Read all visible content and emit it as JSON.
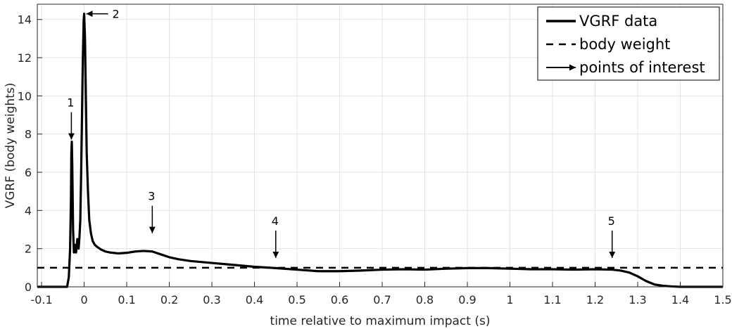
{
  "chart_data": {
    "type": "line",
    "title": "",
    "xlabel": "time relative to maximum impact (s)",
    "ylabel": "VGRF (body weights)",
    "xlim": [
      -0.11,
      1.5
    ],
    "ylim": [
      0,
      14.8
    ],
    "x_ticks": [
      -0.1,
      0,
      0.1,
      0.2,
      0.3,
      0.4,
      0.5,
      0.6,
      0.7,
      0.8,
      0.9,
      1,
      1.1,
      1.2,
      1.3,
      1.4,
      1.5
    ],
    "x_tick_labels": [
      "-0.1",
      "0",
      "0.1",
      "0.2",
      "0.3",
      "0.4",
      "0.5",
      "0.6",
      "0.7",
      "0.8",
      "0.9",
      "1",
      "1.1",
      "1.2",
      "1.3",
      "1.4",
      "1.5"
    ],
    "y_ticks": [
      0,
      2,
      4,
      6,
      8,
      10,
      12,
      14
    ],
    "y_tick_labels": [
      "0",
      "2",
      "4",
      "6",
      "8",
      "10",
      "12",
      "14"
    ],
    "grid": true,
    "legend_position": "top-right",
    "legend": [
      {
        "label": "VGRF data",
        "style": "solid"
      },
      {
        "label": "body weight",
        "style": "dashed"
      },
      {
        "label": "points of interest",
        "style": "arrow"
      }
    ],
    "series": [
      {
        "name": "VGRF data",
        "style": "solid",
        "color": "#000000",
        "x": [
          -0.11,
          -0.04,
          -0.036,
          -0.033,
          -0.031,
          -0.03,
          -0.029,
          -0.028,
          -0.026,
          -0.024,
          -0.022,
          -0.019,
          -0.016,
          -0.013,
          -0.011,
          -0.009,
          -0.007,
          -0.005,
          -0.003,
          -0.001,
          0.0,
          0.002,
          0.004,
          0.006,
          0.009,
          0.012,
          0.016,
          0.02,
          0.025,
          0.03,
          0.04,
          0.05,
          0.06,
          0.08,
          0.1,
          0.12,
          0.14,
          0.16,
          0.18,
          0.2,
          0.22,
          0.25,
          0.3,
          0.35,
          0.4,
          0.45,
          0.5,
          0.55,
          0.6,
          0.65,
          0.7,
          0.75,
          0.8,
          0.85,
          0.9,
          0.95,
          1.0,
          1.05,
          1.1,
          1.15,
          1.2,
          1.24,
          1.26,
          1.28,
          1.3,
          1.32,
          1.34,
          1.36,
          1.38,
          1.4,
          1.45,
          1.5
        ],
        "y": [
          0,
          0,
          0.5,
          2.0,
          4.5,
          7.0,
          7.6,
          6.5,
          3.0,
          1.8,
          2.2,
          1.8,
          2.5,
          2.0,
          2.6,
          3.5,
          6.0,
          9.0,
          12.0,
          14.0,
          14.3,
          13.0,
          10.0,
          7.0,
          5.0,
          3.5,
          2.8,
          2.4,
          2.2,
          2.1,
          1.95,
          1.85,
          1.8,
          1.75,
          1.78,
          1.85,
          1.88,
          1.85,
          1.7,
          1.55,
          1.45,
          1.35,
          1.25,
          1.15,
          1.05,
          0.98,
          0.9,
          0.82,
          0.82,
          0.85,
          0.9,
          0.92,
          0.9,
          0.95,
          0.98,
          0.98,
          0.95,
          0.92,
          0.92,
          0.9,
          0.92,
          0.9,
          0.85,
          0.75,
          0.55,
          0.3,
          0.12,
          0.05,
          0.02,
          0,
          0,
          0
        ]
      },
      {
        "name": "body weight",
        "style": "dashed",
        "color": "#000000",
        "x": [
          -0.11,
          1.5
        ],
        "y": [
          1,
          1
        ]
      }
    ],
    "annotations": [
      {
        "label": "1",
        "x": -0.03,
        "y": 7.6,
        "direction": "down"
      },
      {
        "label": "2",
        "x": 0.0,
        "y": 14.3,
        "direction": "left"
      },
      {
        "label": "3",
        "x": 0.16,
        "y": 2.7,
        "direction": "down"
      },
      {
        "label": "4",
        "x": 0.45,
        "y": 1.4,
        "direction": "down"
      },
      {
        "label": "5",
        "x": 1.24,
        "y": 1.4,
        "direction": "down"
      }
    ]
  }
}
